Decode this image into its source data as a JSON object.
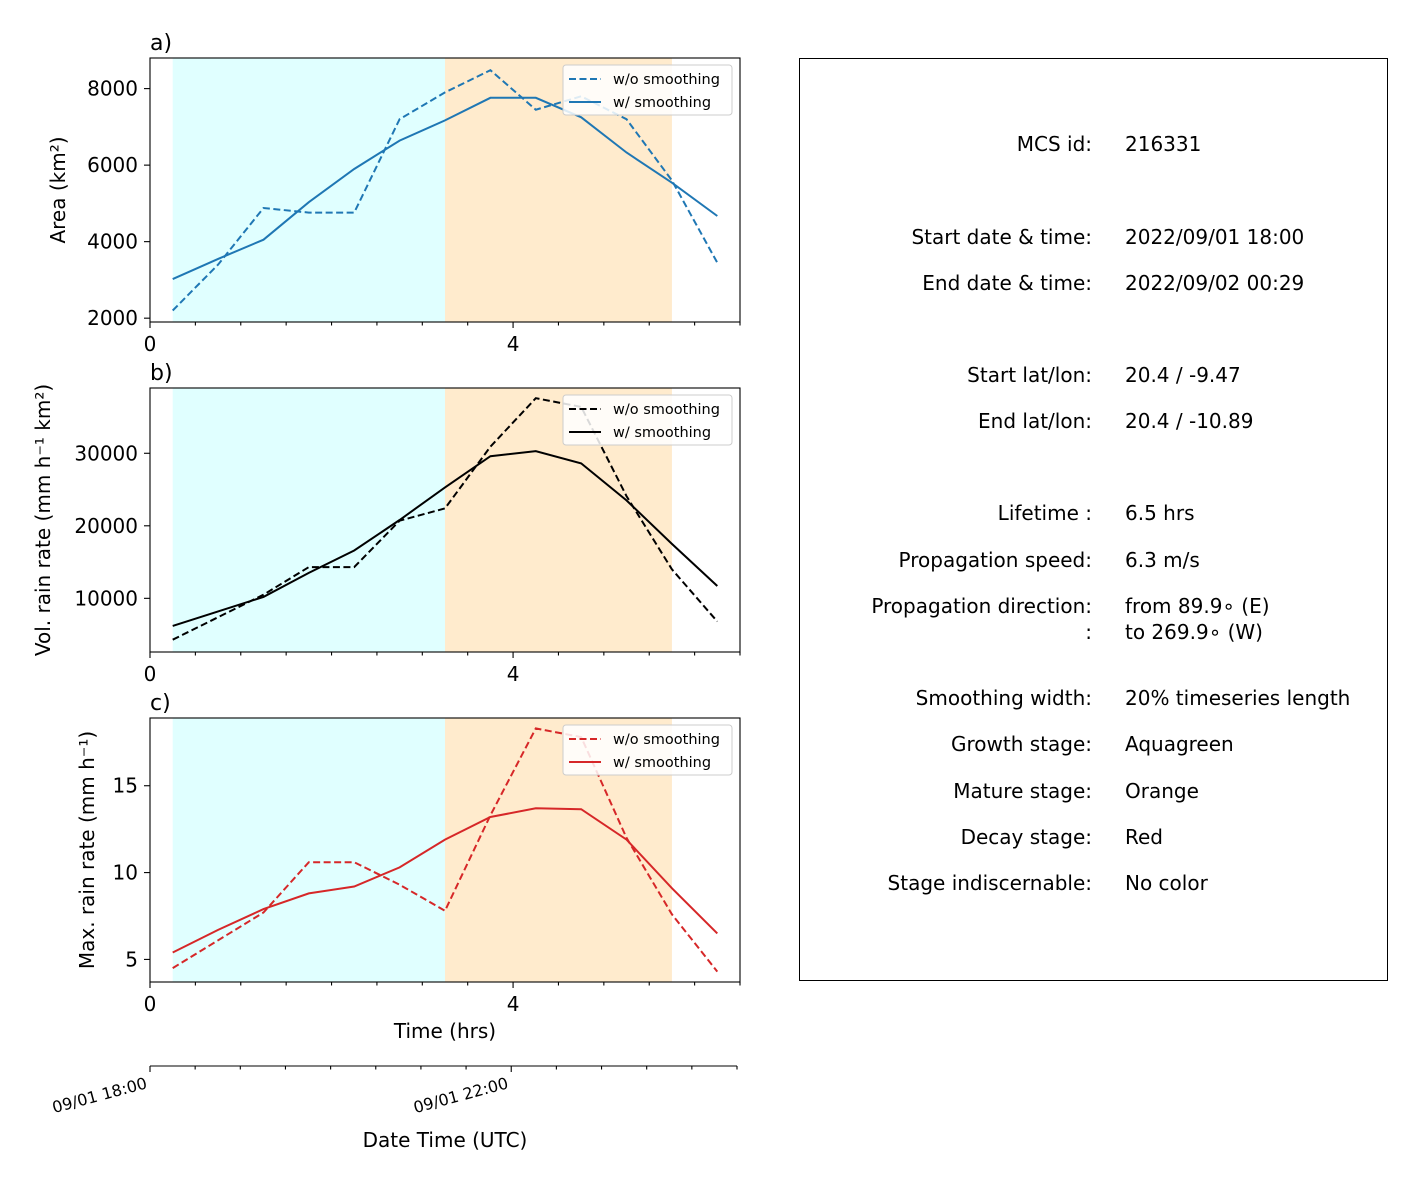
{
  "colors": {
    "growth_shade": "#e0ffff",
    "mature_shade": "#ffebcd",
    "area_line": "#1f77b4",
    "volrain_line": "#000000",
    "maxrain_line": "#d62728"
  },
  "chart_data": [
    {
      "panel": "a)",
      "type": "line",
      "ylabel": "Area  (km²)",
      "xlim": [
        0,
        6.5
      ],
      "ylim": [
        1900,
        8800
      ],
      "yticks": [
        2000,
        4000,
        6000,
        8000
      ],
      "xticks": [
        0,
        4
      ],
      "legend": "top-right",
      "color": "#1f77b4",
      "stages": [
        {
          "name": "Growth stage",
          "x0": 0.25,
          "x1": 3.25,
          "color": "#e0ffff"
        },
        {
          "name": "Mature stage",
          "x0": 3.25,
          "x1": 5.75,
          "color": "#ffebcd"
        }
      ],
      "series": [
        {
          "name": "w/o smoothing",
          "style": "dashed",
          "x": [
            0.25,
            0.75,
            1.25,
            1.75,
            2.25,
            2.75,
            3.25,
            3.75,
            4.25,
            4.75,
            5.25,
            5.75,
            6.25
          ],
          "y": [
            2200,
            3400,
            4880,
            4760,
            4760,
            7200,
            7900,
            8480,
            7450,
            7800,
            7200,
            5600,
            3450
          ]
        },
        {
          "name": "w/ smoothing",
          "style": "solid",
          "x": [
            0.25,
            0.75,
            1.25,
            1.75,
            2.25,
            2.75,
            3.25,
            3.75,
            4.25,
            4.75,
            5.25,
            5.75,
            6.25
          ],
          "y": [
            3020,
            3550,
            4050,
            5030,
            5900,
            6640,
            7170,
            7760,
            7760,
            7250,
            6330,
            5540,
            4670
          ]
        }
      ]
    },
    {
      "panel": "b)",
      "type": "line",
      "ylabel": "Vol. rain rate (mm h⁻¹ km²)",
      "xlim": [
        0,
        6.5
      ],
      "ylim": [
        2600,
        39000
      ],
      "yticks": [
        10000,
        20000,
        30000
      ],
      "xticks": [
        0,
        4
      ],
      "legend": "top-right",
      "color": "#000000",
      "stages": [
        {
          "name": "Growth stage",
          "x0": 0.25,
          "x1": 3.25,
          "color": "#e0ffff"
        },
        {
          "name": "Mature stage",
          "x0": 3.25,
          "x1": 5.75,
          "color": "#ffebcd"
        }
      ],
      "series": [
        {
          "name": "w/o smoothing",
          "style": "dashed",
          "x": [
            0.25,
            0.75,
            1.25,
            1.75,
            2.25,
            2.75,
            3.25,
            3.75,
            4.25,
            4.75,
            5.25,
            5.75,
            6.25
          ],
          "y": [
            4300,
            7400,
            10500,
            14300,
            14300,
            20700,
            22400,
            30900,
            37600,
            36400,
            24100,
            14000,
            6800
          ]
        },
        {
          "name": "w/ smoothing",
          "style": "solid",
          "x": [
            0.25,
            0.75,
            1.25,
            1.75,
            2.25,
            2.75,
            3.25,
            3.75,
            4.25,
            4.75,
            5.25,
            5.75,
            6.25
          ],
          "y": [
            6200,
            8200,
            10200,
            13500,
            16600,
            20800,
            25300,
            29600,
            30300,
            28600,
            23500,
            17500,
            11700
          ]
        }
      ]
    },
    {
      "panel": "c)",
      "type": "line",
      "ylabel": "Max. rain rate  (mm h⁻¹)",
      "xlabel": "Time (hrs)",
      "xlim": [
        0,
        6.5
      ],
      "ylim": [
        3.7,
        18.9
      ],
      "yticks": [
        5,
        10,
        15
      ],
      "xticks": [
        0,
        4
      ],
      "legend": "top-right",
      "color": "#d62728",
      "stages": [
        {
          "name": "Growth stage",
          "x0": 0.25,
          "x1": 3.25,
          "color": "#e0ffff"
        },
        {
          "name": "Mature stage",
          "x0": 3.25,
          "x1": 5.75,
          "color": "#ffebcd"
        }
      ],
      "series": [
        {
          "name": "w/o smoothing",
          "style": "dashed",
          "x": [
            0.25,
            0.75,
            1.25,
            1.75,
            2.25,
            2.75,
            3.25,
            3.75,
            4.25,
            4.75,
            5.25,
            5.75,
            6.25
          ],
          "y": [
            4.5,
            6.1,
            7.7,
            10.6,
            10.6,
            9.3,
            7.8,
            13.3,
            18.3,
            17.8,
            12.0,
            7.6,
            4.3
          ]
        },
        {
          "name": "w/ smoothing",
          "style": "solid",
          "x": [
            0.25,
            0.75,
            1.25,
            1.75,
            2.25,
            2.75,
            3.25,
            3.75,
            4.25,
            4.75,
            5.25,
            5.75,
            6.25
          ],
          "y": [
            5.4,
            6.7,
            7.9,
            8.8,
            9.2,
            10.3,
            11.9,
            13.2,
            13.7,
            13.65,
            11.9,
            9.1,
            6.5
          ]
        }
      ]
    }
  ],
  "date_axis": {
    "label": "Date Time (UTC)",
    "ticks": [
      "09/01 18:00",
      "09/01 22:00"
    ]
  },
  "info": {
    "rows": [
      {
        "key": "MCS id:",
        "value": "216331"
      },
      {
        "key": "Start date & time:",
        "value": "2022/09/01 18:00"
      },
      {
        "key": "End date & time:",
        "value": "2022/09/02 00:29"
      },
      {
        "key": "Start lat/lon:",
        "value": "20.4 / -9.47"
      },
      {
        "key": "End lat/lon:",
        "value": "20.4 / -10.89"
      },
      {
        "key": "Lifetime :",
        "value": "6.5 hrs"
      },
      {
        "key": "Propagation speed:",
        "value": "6.3 m/s"
      },
      {
        "key": "Propagation direction:",
        "value": "from  89.9∘ (E)"
      },
      {
        "key": ":",
        "value": "to   269.9∘ (W)"
      },
      {
        "key": "Smoothing width:",
        "value": "20% timeseries length"
      },
      {
        "key": "Growth stage:",
        "value": "Aquagreen"
      },
      {
        "key": "Mature stage:",
        "value": "Orange"
      },
      {
        "key": "Decay stage:",
        "value": "Red"
      },
      {
        "key": "Stage indiscernable:",
        "value": "No color"
      }
    ]
  }
}
